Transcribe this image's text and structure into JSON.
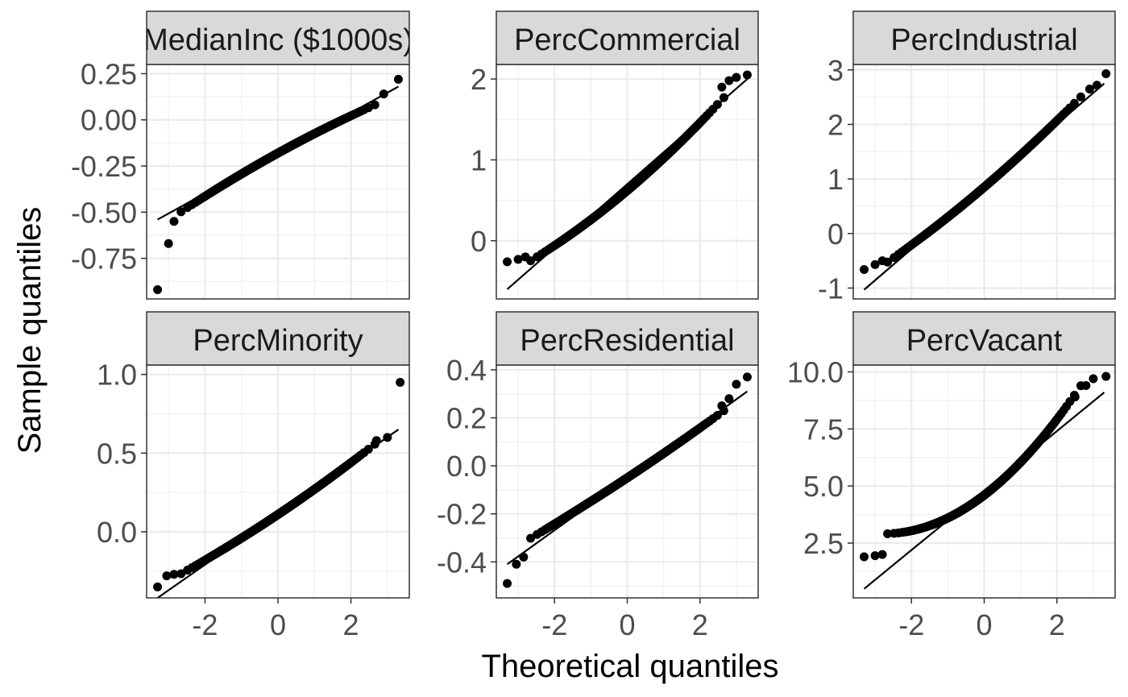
{
  "chart_data": {
    "type": "scatter",
    "chart_kind": "qq-plot facet grid",
    "xlabel": "Theoretical quantiles",
    "ylabel": "Sample quantiles",
    "theme": "bw",
    "grid": true,
    "x_ticks": [
      "-2",
      "0",
      "2"
    ],
    "x_tick_values": [
      -2,
      0,
      2
    ],
    "xlim": [
      -3.6,
      3.6
    ],
    "colors": {
      "points": "#000000",
      "line": "#000000",
      "strip_bg": "#d9d9d9",
      "grid": "#ebebeb",
      "text": "#4d4d4d"
    },
    "panels": [
      {
        "label": "MedianInc ($1000s)",
        "label_visible": "MedianInc ($1000",
        "ylim": [
          -0.97,
          0.3
        ],
        "y_ticks": [
          {
            "value": 0.25,
            "label": "0.25"
          },
          {
            "value": 0.0,
            "label": "0.00"
          },
          {
            "value": -0.25,
            "label": "-0.25"
          },
          {
            "value": -0.5,
            "label": "-0.50"
          },
          {
            "value": -0.75,
            "label": "-0.75"
          }
        ],
        "ref_line": {
          "x": [
            -3.3,
            3.3
          ],
          "y": [
            -0.54,
            0.18
          ]
        },
        "center": -0.18,
        "slope": 0.109,
        "curvature": -0.004,
        "tail_points": [
          {
            "x": -3.3,
            "y": -0.92
          },
          {
            "x": -3.0,
            "y": -0.67
          },
          {
            "x": -2.85,
            "y": -0.55
          },
          {
            "x": 3.3,
            "y": 0.22
          },
          {
            "x": 2.9,
            "y": 0.14
          }
        ]
      },
      {
        "label": "PercCommercial",
        "label_visible": "PercCommercial",
        "ylim": [
          -0.72,
          2.18
        ],
        "y_ticks": [
          {
            "value": 2,
            "label": "2"
          },
          {
            "value": 1,
            "label": "1"
          },
          {
            "value": 0,
            "label": "0"
          }
        ],
        "ref_line": {
          "x": [
            -3.3,
            3.3
          ],
          "y": [
            -0.6,
            2.0
          ]
        },
        "center": 0.62,
        "slope": 0.38,
        "curvature": 0.02,
        "tail_points": [
          {
            "x": -3.3,
            "y": -0.26
          },
          {
            "x": -3.0,
            "y": -0.23
          },
          {
            "x": -2.8,
            "y": -0.2
          },
          {
            "x": 2.6,
            "y": 1.9
          },
          {
            "x": 2.8,
            "y": 1.98
          },
          {
            "x": 3.0,
            "y": 2.02
          },
          {
            "x": 3.3,
            "y": 2.05
          }
        ]
      },
      {
        "label": "PercIndustrial",
        "label_visible": "PercIndustrial",
        "ylim": [
          -1.2,
          3.1
        ],
        "y_ticks": [
          {
            "value": 3,
            "label": "3"
          },
          {
            "value": 2,
            "label": "2"
          },
          {
            "value": 1,
            "label": "1"
          },
          {
            "value": 0,
            "label": "0"
          },
          {
            "value": -1,
            "label": "-1"
          }
        ],
        "ref_line": {
          "x": [
            -3.3,
            3.3
          ],
          "y": [
            -1.03,
            2.75
          ]
        },
        "center": 0.85,
        "slope": 0.57,
        "curvature": 0.02,
        "tail_points": [
          {
            "x": -3.3,
            "y": -0.66
          },
          {
            "x": -3.0,
            "y": -0.57
          },
          {
            "x": -2.8,
            "y": -0.5
          },
          {
            "x": 2.9,
            "y": 2.65
          },
          {
            "x": 3.1,
            "y": 2.72
          },
          {
            "x": 3.35,
            "y": 2.93
          }
        ]
      },
      {
        "label": "PercMinority",
        "label_visible": "PercMinority",
        "ylim": [
          -0.42,
          1.06
        ],
        "y_ticks": [
          {
            "value": 1.0,
            "label": "1.0"
          },
          {
            "value": 0.5,
            "label": "0.5"
          },
          {
            "value": 0.0,
            "label": "0.0"
          }
        ],
        "ref_line": {
          "x": [
            -3.3,
            3.3
          ],
          "y": [
            -0.42,
            0.65
          ]
        },
        "center": 0.11,
        "slope": 0.155,
        "curvature": 0.005,
        "tail_points": [
          {
            "x": -3.3,
            "y": -0.35
          },
          {
            "x": -3.05,
            "y": -0.28
          },
          {
            "x": -2.85,
            "y": -0.27
          },
          {
            "x": 2.7,
            "y": 0.58
          },
          {
            "x": 3.0,
            "y": 0.6
          },
          {
            "x": 3.35,
            "y": 0.95
          }
        ]
      },
      {
        "label": "PercResidential",
        "label_visible": "PercResidential",
        "ylim": [
          -0.55,
          0.42
        ],
        "y_ticks": [
          {
            "value": 0.4,
            "label": "0.4"
          },
          {
            "value": 0.2,
            "label": "0.2"
          },
          {
            "value": 0.0,
            "label": "0.0"
          },
          {
            "value": -0.2,
            "label": "-0.2"
          },
          {
            "value": -0.4,
            "label": "-0.4"
          }
        ],
        "ref_line": {
          "x": [
            -3.3,
            3.3
          ],
          "y": [
            -0.41,
            0.31
          ]
        },
        "center": -0.05,
        "slope": 0.1,
        "curvature": 0.002,
        "tail_points": [
          {
            "x": -3.3,
            "y": -0.49
          },
          {
            "x": -3.05,
            "y": -0.41
          },
          {
            "x": -2.85,
            "y": -0.38
          },
          {
            "x": 2.6,
            "y": 0.25
          },
          {
            "x": 2.8,
            "y": 0.28
          },
          {
            "x": 3.0,
            "y": 0.34
          },
          {
            "x": 3.3,
            "y": 0.37
          }
        ]
      },
      {
        "label": "PercVacant",
        "label_visible": "PercVacant",
        "ylim": [
          0.1,
          10.3
        ],
        "y_ticks": [
          {
            "value": 10.0,
            "label": "10.0"
          },
          {
            "value": 7.5,
            "label": "7.5"
          },
          {
            "value": 5.0,
            "label": "5.0"
          },
          {
            "value": 2.5,
            "label": "2.5"
          }
        ],
        "ref_line": {
          "x": [
            -3.3,
            3.3
          ],
          "y": [
            0.5,
            9.1
          ]
        },
        "center": 4.6,
        "slope": 1.22,
        "curvature": 0.22,
        "tail_points": [
          {
            "x": -3.3,
            "y": 1.9
          },
          {
            "x": -3.0,
            "y": 1.95
          },
          {
            "x": -2.8,
            "y": 2.0
          },
          {
            "x": 2.5,
            "y": 8.9
          },
          {
            "x": 2.8,
            "y": 9.4
          },
          {
            "x": 3.0,
            "y": 9.7
          },
          {
            "x": 3.35,
            "y": 9.8
          }
        ]
      }
    ]
  }
}
